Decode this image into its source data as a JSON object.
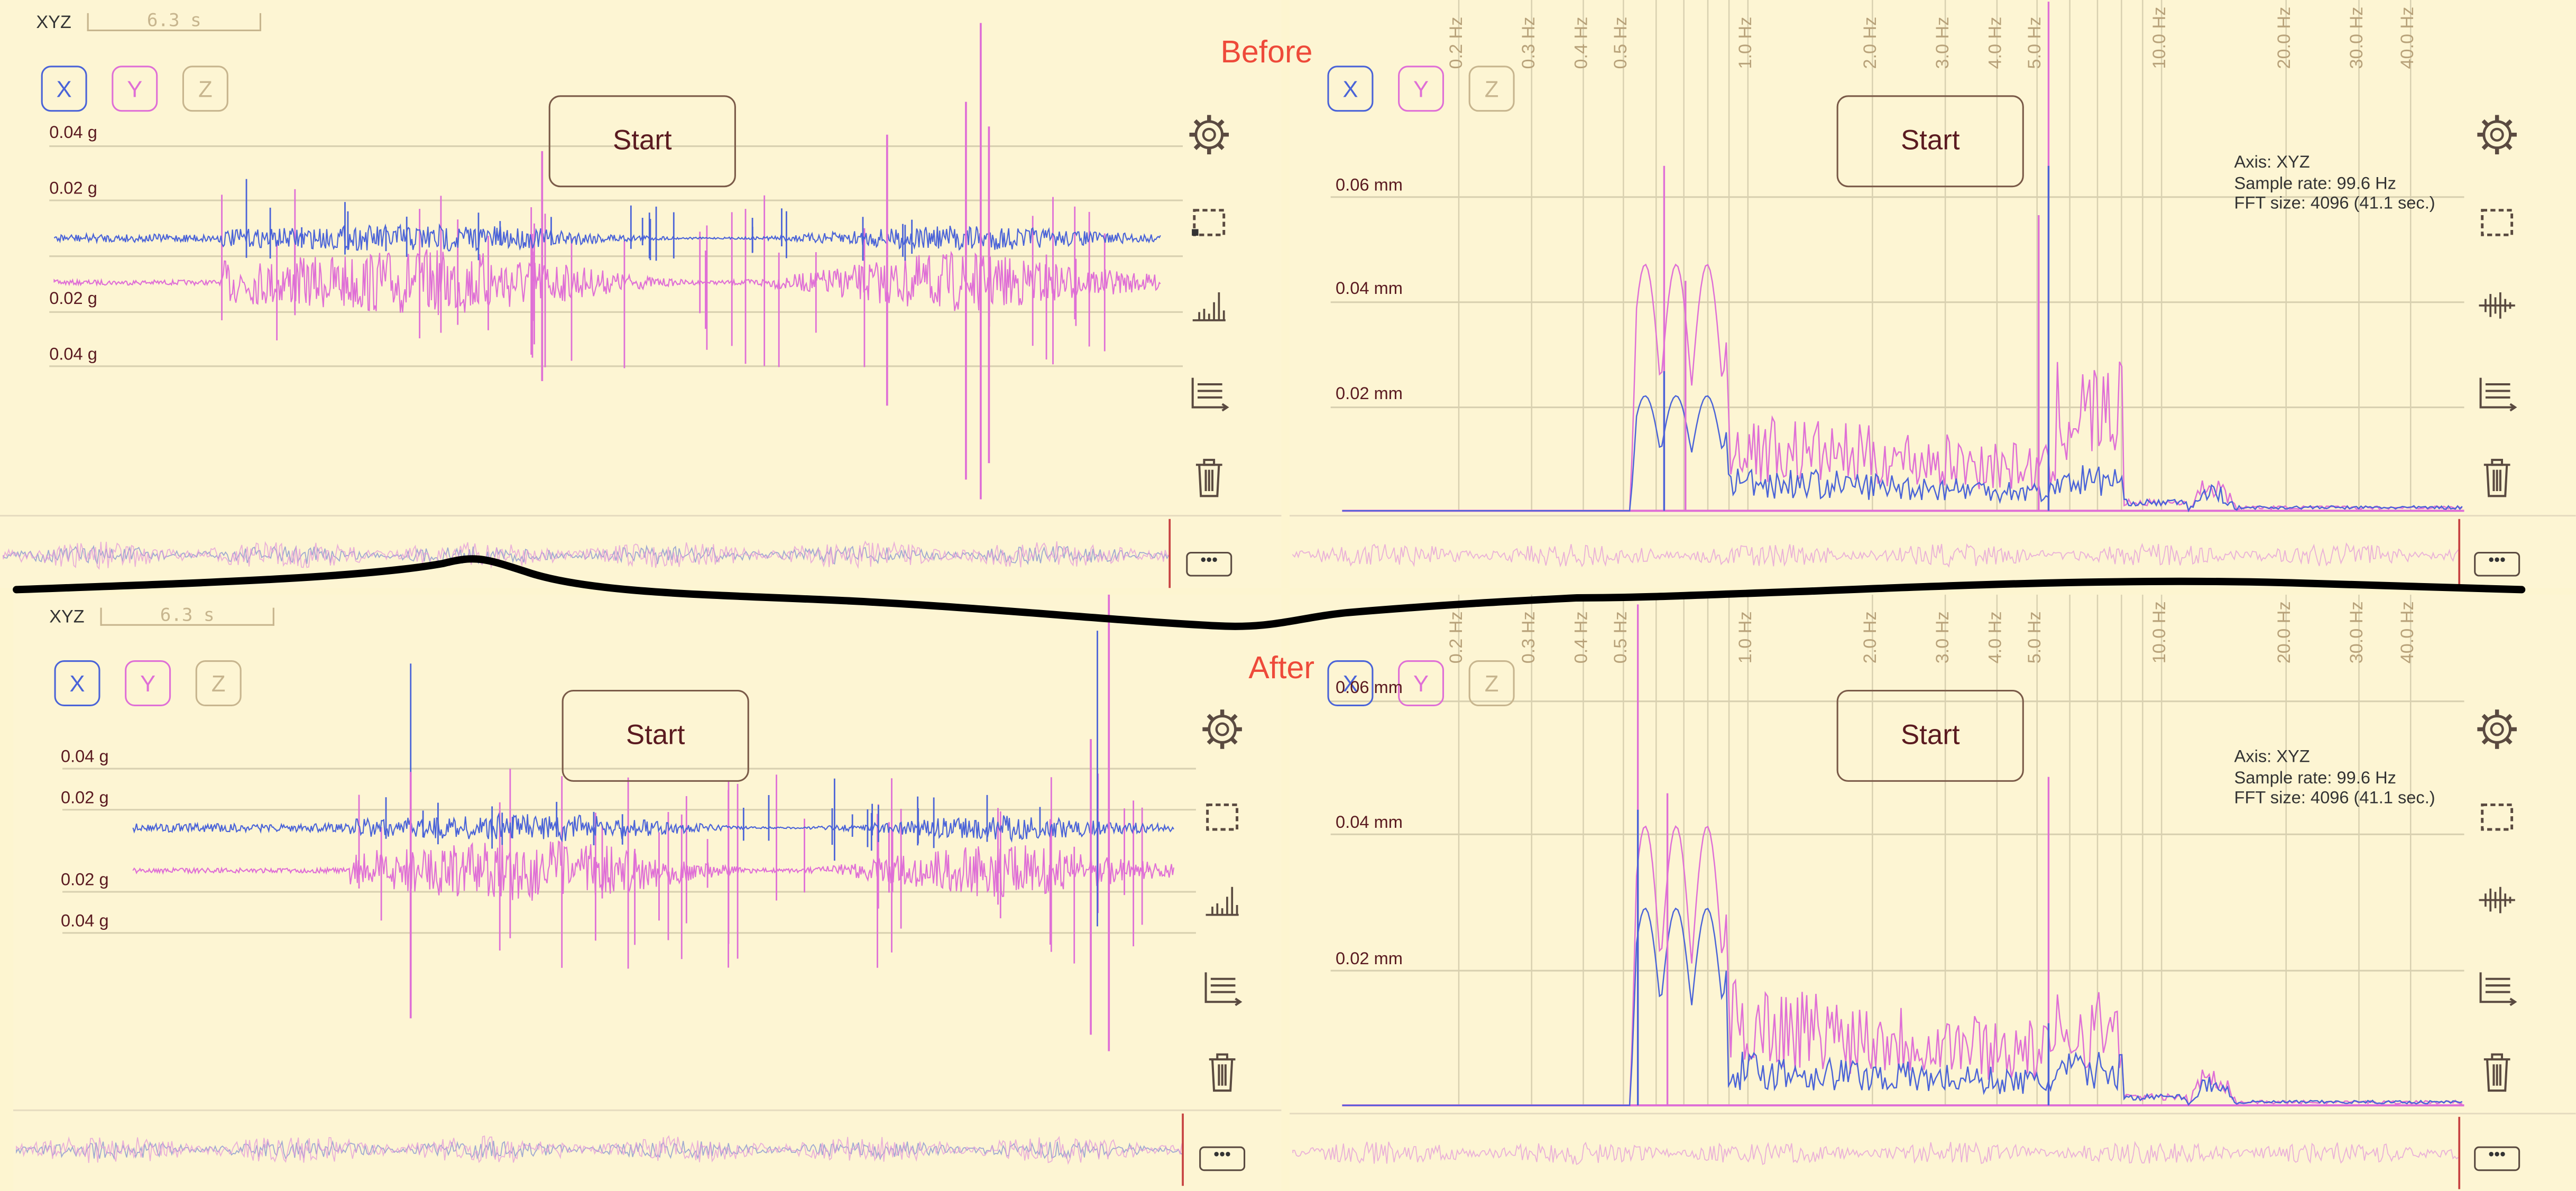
{
  "captions": {
    "before": "Before",
    "after": "After"
  },
  "panels": [
    {
      "id": "before-time",
      "type": "time",
      "axis_label": "XYZ",
      "duration": "6.3 s",
      "axes": [
        "X",
        "Y",
        "Z"
      ],
      "start_label": "Start",
      "y_labels": [
        "0.04 g",
        "0.02 g",
        "0.02 g",
        "0.04 g"
      ],
      "more_label": "•••"
    },
    {
      "id": "before-fft",
      "type": "fft",
      "axes": [
        "X",
        "Y",
        "Z"
      ],
      "start_label": "Start",
      "y_labels": [
        "0.06 mm",
        "0.04 mm",
        "0.02 mm"
      ],
      "hz_labels": [
        "0.2 Hz",
        "0.3 Hz",
        "0.4 Hz",
        "0.5 Hz",
        "1.0 Hz",
        "2.0 Hz",
        "3.0 Hz",
        "4.0 Hz",
        "5.0 Hz",
        "10.0 Hz",
        "20.0 Hz",
        "30.0 Hz",
        "40.0 Hz"
      ],
      "info": {
        "axis": "Axis: XYZ",
        "sample_rate": "Sample rate: 99.6 Hz",
        "fft_size": "FFT size: 4096 (41.1 sec.)"
      },
      "more_label": "•••"
    },
    {
      "id": "after-time",
      "type": "time",
      "axis_label": "XYZ",
      "duration": "6.3 s",
      "axes": [
        "X",
        "Y",
        "Z"
      ],
      "start_label": "Start",
      "y_labels": [
        "0.04 g",
        "0.02 g",
        "0.02 g",
        "0.04 g"
      ],
      "more_label": "•••"
    },
    {
      "id": "after-fft",
      "type": "fft",
      "axes": [
        "X",
        "Y",
        "Z"
      ],
      "start_label": "Start",
      "y_labels": [
        "0.06 mm",
        "0.04 mm",
        "0.02 mm"
      ],
      "hz_labels": [
        "0.2 Hz",
        "0.3 Hz",
        "0.4 Hz",
        "0.5 Hz",
        "1.0 Hz",
        "2.0 Hz",
        "3.0 Hz",
        "4.0 Hz",
        "5.0 Hz",
        "10.0 Hz",
        "20.0 Hz",
        "30.0 Hz",
        "40.0 Hz"
      ],
      "info": {
        "axis": "Axis: XYZ",
        "sample_rate": "Sample rate: 99.6 Hz",
        "fft_size": "FFT size: 4096 (41.1 sec.)"
      },
      "more_label": "•••"
    }
  ],
  "colors": {
    "x": "#4a63d8",
    "y": "#df6fd6",
    "z": "#c7b58e",
    "grid": "#d8d0b0"
  },
  "icons": [
    "gear-icon",
    "selection-icon",
    "spectrum-icon",
    "waveform-icon",
    "axes-icon",
    "trash-icon"
  ]
}
